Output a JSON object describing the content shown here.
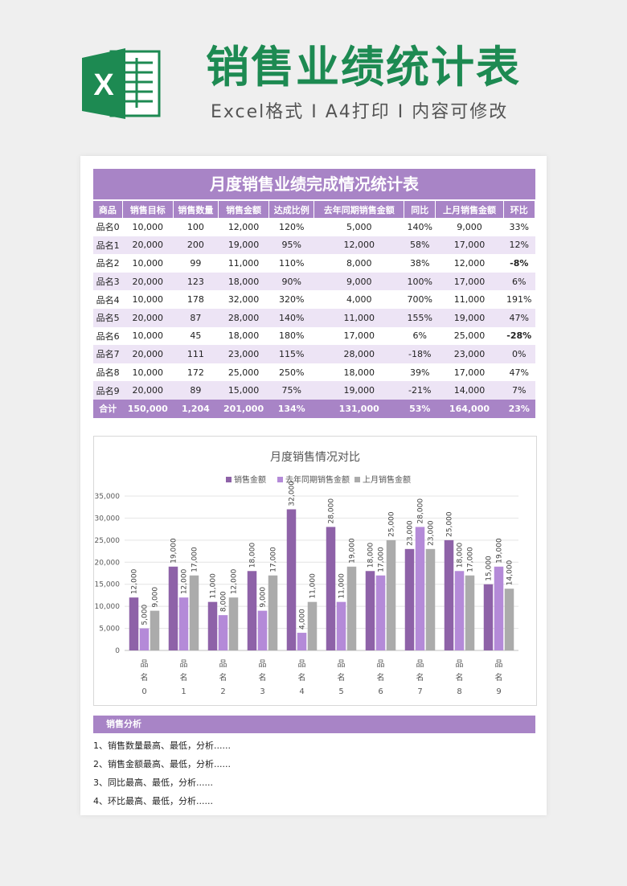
{
  "header": {
    "logo_letter": "X",
    "title": "销售业绩统计表",
    "subtitle": "Excel格式 I A4打印 I 内容可修改"
  },
  "table": {
    "title": "月度销售业绩完成情况统计表",
    "columns": [
      "商品",
      "销售目标",
      "销售数量",
      "销售金额",
      "达成比例",
      "去年同期销售金额",
      "同比",
      "上月销售金额",
      "环比"
    ],
    "rows": [
      [
        "品名0",
        "10,000",
        "100",
        "12,000",
        "120%",
        "5,000",
        "140%",
        "9,000",
        "33%"
      ],
      [
        "品名1",
        "20,000",
        "200",
        "19,000",
        "95%",
        "12,000",
        "58%",
        "17,000",
        "12%"
      ],
      [
        "品名2",
        "10,000",
        "99",
        "11,000",
        "110%",
        "8,000",
        "38%",
        "12,000",
        "-8%"
      ],
      [
        "品名3",
        "20,000",
        "123",
        "18,000",
        "90%",
        "9,000",
        "100%",
        "17,000",
        "6%"
      ],
      [
        "品名4",
        "10,000",
        "178",
        "32,000",
        "320%",
        "4,000",
        "700%",
        "11,000",
        "191%"
      ],
      [
        "品名5",
        "20,000",
        "87",
        "28,000",
        "140%",
        "11,000",
        "155%",
        "19,000",
        "47%"
      ],
      [
        "品名6",
        "10,000",
        "45",
        "18,000",
        "180%",
        "17,000",
        "6%",
        "25,000",
        "-28%"
      ],
      [
        "品名7",
        "20,000",
        "111",
        "23,000",
        "115%",
        "28,000",
        "-18%",
        "23,000",
        "0%"
      ],
      [
        "品名8",
        "10,000",
        "172",
        "25,000",
        "250%",
        "18,000",
        "39%",
        "17,000",
        "47%"
      ],
      [
        "品名9",
        "20,000",
        "89",
        "15,000",
        "75%",
        "19,000",
        "-21%",
        "14,000",
        "7%"
      ]
    ],
    "total": [
      "合计",
      "150,000",
      "1,204",
      "201,000",
      "134%",
      "131,000",
      "53%",
      "164,000",
      "23%"
    ]
  },
  "chart_data": {
    "type": "bar",
    "title": "月度销售情况对比",
    "categories": [
      "品名0",
      "品名1",
      "品名2",
      "品名3",
      "品名4",
      "品名5",
      "品名6",
      "品名7",
      "品名8",
      "品名9"
    ],
    "series": [
      {
        "name": "销售金额",
        "color": "#8e62a8",
        "values": [
          12000,
          19000,
          11000,
          18000,
          32000,
          28000,
          18000,
          23000,
          25000,
          15000
        ]
      },
      {
        "name": "去年同期销售金额",
        "color": "#b48ad8",
        "values": [
          5000,
          12000,
          8000,
          9000,
          4000,
          11000,
          17000,
          28000,
          18000,
          19000
        ]
      },
      {
        "name": "上月销售金额",
        "color": "#ababab",
        "values": [
          9000,
          17000,
          12000,
          17000,
          11000,
          19000,
          25000,
          23000,
          17000,
          14000
        ]
      }
    ],
    "ylim": [
      0,
      35000
    ],
    "yticks": [
      "0",
      "5,000",
      "10,000",
      "15,000",
      "20,000",
      "25,000",
      "30,000",
      "35,000"
    ],
    "grid": true,
    "legend_position": "top",
    "xlabel": "",
    "ylabel": ""
  },
  "analysis": {
    "title": "销售分析",
    "items": [
      "1、销售数量最高、最低，分析......",
      "2、销售金额最高、最低，分析......",
      "3、同比最高、最低，分析......",
      "4、环比最高、最低，分析......"
    ]
  },
  "colors": {
    "accent": "#a884c6",
    "title_green": "#1d8a52",
    "negative": "#e00000"
  }
}
